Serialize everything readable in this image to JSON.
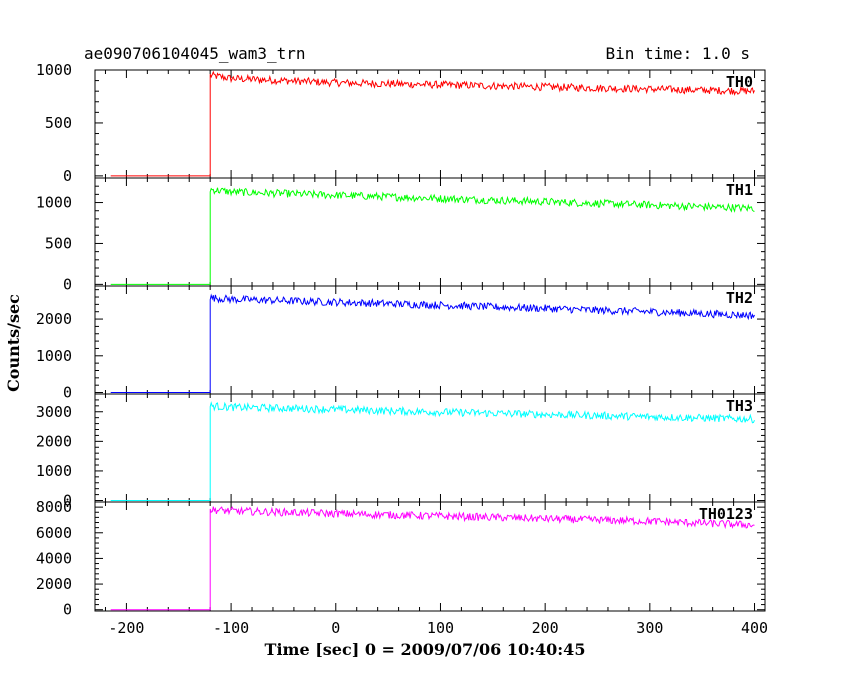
{
  "header": {
    "title": "ae090706104045_wam3_trn",
    "bin_time": "Bin time: 1.0 s"
  },
  "chart_data": {
    "type": "line",
    "xlabel": "Time [sec] 0 = 2009/07/06 10:40:45",
    "ylabel": "Counts/sec",
    "xlim": [
      -230,
      410
    ],
    "xticks": [
      -200,
      -100,
      0,
      100,
      200,
      300,
      400
    ],
    "xtick_labels": [
      "-200",
      "-100",
      "0",
      "100",
      "200",
      "300",
      "400"
    ],
    "grid": false,
    "panels": [
      {
        "name": "TH0",
        "color": "#ff0000",
        "ylim": [
          -20,
          1000
        ],
        "yticks": [
          0,
          500,
          1000
        ],
        "ytick_labels": [
          "0",
          "500",
          "1000"
        ],
        "pre_level": 0,
        "trigger_time": -120,
        "x": [
          -120,
          -100,
          -50,
          0,
          50,
          100,
          150,
          200,
          250,
          300,
          350,
          400
        ],
        "y": [
          950,
          920,
          900,
          880,
          870,
          860,
          850,
          840,
          830,
          820,
          810,
          800
        ]
      },
      {
        "name": "TH1",
        "color": "#00ff00",
        "ylim": [
          -20,
          1300
        ],
        "yticks": [
          0,
          500,
          1000
        ],
        "ytick_labels": [
          "0",
          "500",
          "1000"
        ],
        "pre_level": 0,
        "trigger_time": -120,
        "x": [
          -120,
          -100,
          -50,
          0,
          50,
          100,
          150,
          200,
          250,
          300,
          350,
          400
        ],
        "y": [
          1160,
          1130,
          1110,
          1090,
          1070,
          1050,
          1030,
          1010,
          990,
          970,
          950,
          930
        ]
      },
      {
        "name": "TH2",
        "color": "#0000ff",
        "ylim": [
          -40,
          2900
        ],
        "yticks": [
          0,
          1000,
          2000
        ],
        "ytick_labels": [
          "0",
          "1000",
          "2000"
        ],
        "pre_level": 0,
        "trigger_time": -120,
        "x": [
          -120,
          -100,
          -50,
          0,
          50,
          100,
          150,
          200,
          250,
          300,
          350,
          400
        ],
        "y": [
          2580,
          2540,
          2500,
          2460,
          2420,
          2380,
          2330,
          2290,
          2240,
          2200,
          2150,
          2100
        ]
      },
      {
        "name": "TH3",
        "color": "#00ffff",
        "ylim": [
          -50,
          3600
        ],
        "yticks": [
          0,
          1000,
          2000,
          3000
        ],
        "ytick_labels": [
          "0",
          "1000",
          "2000",
          "3000"
        ],
        "pre_level": 0,
        "trigger_time": -120,
        "x": [
          -120,
          -100,
          -50,
          0,
          50,
          100,
          150,
          200,
          250,
          300,
          350,
          400
        ],
        "y": [
          3200,
          3150,
          3120,
          3080,
          3030,
          2990,
          2950,
          2910,
          2870,
          2830,
          2790,
          2750
        ]
      },
      {
        "name": "TH0123",
        "color": "#ff00ff",
        "ylim": [
          -100,
          8400
        ],
        "yticks": [
          0,
          2000,
          4000,
          6000,
          8000
        ],
        "ytick_labels": [
          "0",
          "2000",
          "4000",
          "6000",
          "8000"
        ],
        "pre_level": 0,
        "trigger_time": -120,
        "x": [
          -120,
          -100,
          -50,
          0,
          50,
          100,
          150,
          200,
          250,
          300,
          350,
          400
        ],
        "y": [
          7800,
          7700,
          7600,
          7500,
          7400,
          7300,
          7200,
          7100,
          7000,
          6900,
          6750,
          6600
        ]
      }
    ]
  }
}
